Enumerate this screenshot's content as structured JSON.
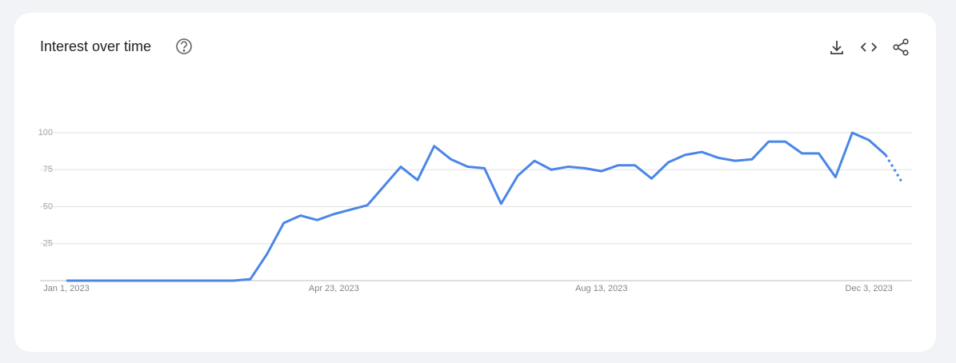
{
  "chart_data": {
    "type": "line",
    "title": "Interest over time",
    "categories": [
      "Jan 1, 2023",
      null,
      null,
      null,
      null,
      null,
      null,
      null,
      null,
      null,
      null,
      null,
      null,
      null,
      null,
      null,
      "Apr 23, 2023",
      null,
      null,
      null,
      null,
      null,
      null,
      null,
      null,
      null,
      null,
      null,
      null,
      null,
      null,
      null,
      "Aug 13, 2023",
      null,
      null,
      null,
      null,
      null,
      null,
      null,
      null,
      null,
      null,
      null,
      null,
      null,
      null,
      null,
      "Dec 3, 2023",
      null,
      null
    ],
    "values": [
      0,
      0,
      0,
      0,
      0,
      0,
      0,
      0,
      0,
      0,
      0,
      1,
      18,
      39,
      44,
      41,
      45,
      48,
      51,
      64,
      77,
      68,
      91,
      82,
      77,
      76,
      52,
      71,
      81,
      75,
      77,
      76,
      74,
      78,
      78,
      69,
      80,
      85,
      87,
      83,
      81,
      82,
      94,
      94,
      86,
      86,
      70,
      100,
      95,
      85,
      66
    ],
    "color": "#4a86e8",
    "ylim": [
      0,
      100
    ],
    "yticks": [
      25,
      50,
      75,
      100
    ],
    "grid": true
  }
}
